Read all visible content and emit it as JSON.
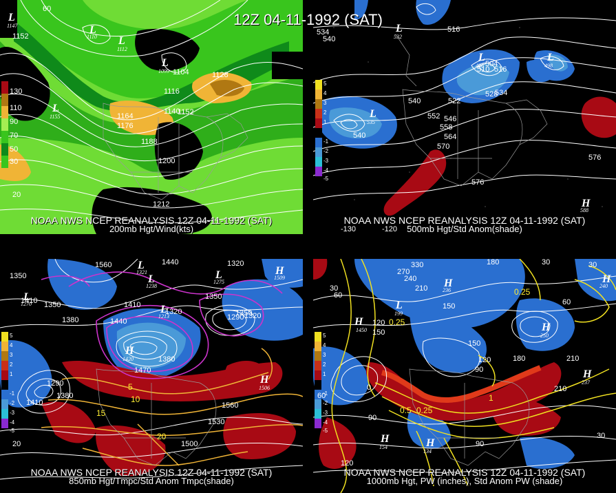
{
  "title": "12Z 04-11-1992 (SAT)",
  "panels": {
    "p200": {
      "caption_line1": "NOAA NWS NCEP REANALYSIS 12Z 04-11-1992 (SAT)",
      "caption_line2": "200mb Hgt/Wind(kts)",
      "colorbar": [
        "130",
        "110",
        "90",
        "70",
        "50",
        "30"
      ],
      "contour_labels": [
        "1152",
        "1104",
        "1116",
        "1128",
        "1140",
        "1152",
        "1164",
        "1176",
        "1188",
        "1200",
        "1212"
      ],
      "centers": [
        {
          "type": "L",
          "value": "1147"
        },
        {
          "type": "L",
          "value": "1110"
        },
        {
          "type": "L",
          "value": "1112"
        },
        {
          "type": "L",
          "value": "1099"
        },
        {
          "type": "L",
          "value": "1155"
        }
      ],
      "edge_labels": [
        "60",
        "20"
      ]
    },
    "p500": {
      "caption_line1": "NOAA NWS NCEP REANALYSIS 12Z 04-11-1992 (SAT)",
      "caption_line2": "500mb Hgt/Std Anom(shade)",
      "colorbar": [
        "5",
        "4",
        "3",
        "2",
        "1",
        "-1",
        "-2",
        "-3",
        "-4",
        "-5"
      ],
      "contour_labels": [
        "534",
        "540",
        "516",
        "504",
        "510",
        "516",
        "528",
        "534",
        "522",
        "540",
        "546",
        "552",
        "558",
        "564",
        "570",
        "540",
        "576",
        "576"
      ],
      "centers": [
        {
          "type": "L",
          "value": "532"
        },
        {
          "type": "L",
          "value": "496"
        },
        {
          "type": "L",
          "value": "498"
        },
        {
          "type": "L",
          "value": "535"
        },
        {
          "type": "L",
          "value": "512"
        },
        {
          "type": "H",
          "value": "588"
        }
      ],
      "edge_labels": [
        "-120",
        "-130"
      ]
    },
    "p850": {
      "caption_line1": "NOAA NWS NCEP REANALYSIS 12Z 04-11-1992 (SAT)",
      "caption_line2": "850mb Hgt/Tmpc/Std Anom Tmpc(shade)",
      "colorbar": [
        "5",
        "4",
        "3",
        "2",
        "1",
        "-1",
        "-2",
        "-3",
        "-4",
        "-5"
      ],
      "contour_labels": [
        "1560",
        "1440",
        "1320",
        "1350",
        "1410",
        "1350",
        "1380",
        "1440",
        "1410",
        "1380",
        "1470",
        "1290",
        "1320",
        "1350",
        "1380",
        "1410",
        "1560",
        "1530",
        "1500",
        "1350",
        "1320",
        "1290",
        "10",
        "20",
        "15",
        "5"
      ],
      "centers": [
        {
          "type": "L",
          "value": "1321"
        },
        {
          "type": "L",
          "value": "1238"
        },
        {
          "type": "L",
          "value": "1213"
        },
        {
          "type": "L",
          "value": "1275"
        },
        {
          "type": "L",
          "value": "1270"
        },
        {
          "type": "H",
          "value": "1420"
        },
        {
          "type": "H",
          "value": "1509"
        },
        {
          "type": "H",
          "value": "1506"
        }
      ],
      "edge_labels": [
        "20"
      ]
    },
    "p1000": {
      "caption_line1": "NOAA NWS NCEP REANALYSIS 12Z 04-11-1992 (SAT)",
      "caption_line2": "1000mb Hgt, PW (inches), Std Anom PW (shade)",
      "colorbar": [
        "5",
        "4",
        "3",
        "2",
        "1",
        "-1",
        "-2",
        "-3",
        "-4",
        "-5"
      ],
      "contour_labels": [
        "330",
        "180",
        "30",
        "270",
        "240",
        "210",
        "60",
        "30",
        "150",
        "120",
        "0.25",
        "0.25",
        "60",
        "150",
        "120",
        "90",
        "60",
        "30",
        "0",
        "0.5",
        "0.25",
        "1",
        "210",
        "120",
        "90",
        "30",
        "180",
        "150",
        "210",
        "90"
      ],
      "centers": [
        {
          "type": "H",
          "value": "1450"
        },
        {
          "type": "H",
          "value": "236"
        },
        {
          "type": "H",
          "value": "250"
        },
        {
          "type": "H",
          "value": "237"
        },
        {
          "type": "H",
          "value": "154"
        },
        {
          "type": "H",
          "value": "134"
        },
        {
          "type": "H",
          "value": "240"
        },
        {
          "type": "L",
          "value": "199"
        }
      ],
      "edge_labels": [
        "120",
        "60"
      ]
    }
  },
  "colors": {
    "wind_light": "#a5ee52",
    "wind_mid": "#39c51d",
    "wind_dark": "#0f8a1a",
    "wind_orange": "#f0b436",
    "wind_brown": "#b07812",
    "anom_blue": "#2a6fd0",
    "anom_lightblue": "#4a9ad8",
    "anom_red": "#a80a14",
    "pw_yellow": "#f0e020",
    "purple": "#cc33cc"
  }
}
